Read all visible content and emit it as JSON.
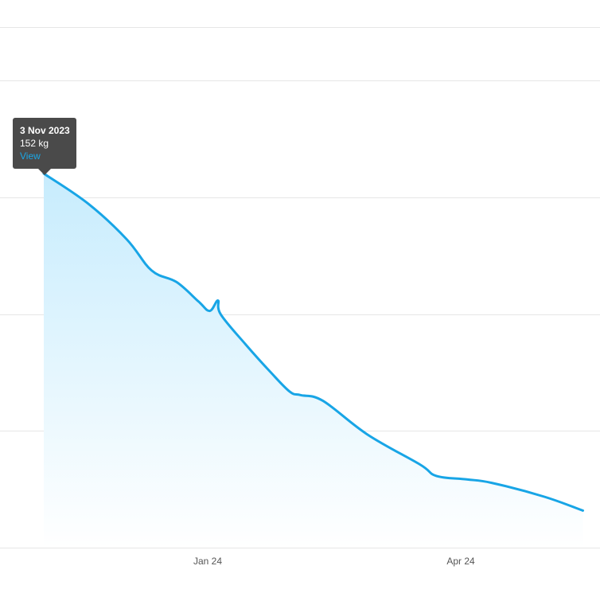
{
  "colors": {
    "line": "#18a5e6",
    "fill_top": "#c7ecfd",
    "fill_bottom": "#ffffff",
    "grid": "#e6e6e6",
    "tooltip_bg": "#4a4a4a",
    "tooltip_link": "#1aa7e6"
  },
  "tooltip": {
    "date": "3 Nov 2023",
    "value": "152 kg",
    "link": "View"
  },
  "chart_data": {
    "type": "area",
    "title": "",
    "xlabel": "",
    "ylabel": "",
    "x_ticks": [
      "Jan 24",
      "Apr 24"
    ],
    "grid": true,
    "x": [
      "2023-11-03",
      "2023-11-19",
      "2023-12-03",
      "2023-12-12",
      "2023-12-21",
      "2023-12-29",
      "2024-01-02",
      "2024-01-05",
      "2024-01-06",
      "2024-01-15",
      "2024-01-24",
      "2024-01-31",
      "2024-02-04",
      "2024-02-12",
      "2024-02-28",
      "2024-03-18",
      "2024-03-24",
      "2024-04-04",
      "2024-04-13",
      "2024-05-02",
      "2024-05-16"
    ],
    "series": [
      {
        "values": [
          152.0,
          149.4,
          146.3,
          143.6,
          142.6,
          140.9,
          140.1,
          141.0,
          139.8,
          137.2,
          134.8,
          133.1,
          132.8,
          132.3,
          129.4,
          126.8,
          125.8,
          125.5,
          125.2,
          124.0,
          122.8
        ]
      }
    ]
  }
}
